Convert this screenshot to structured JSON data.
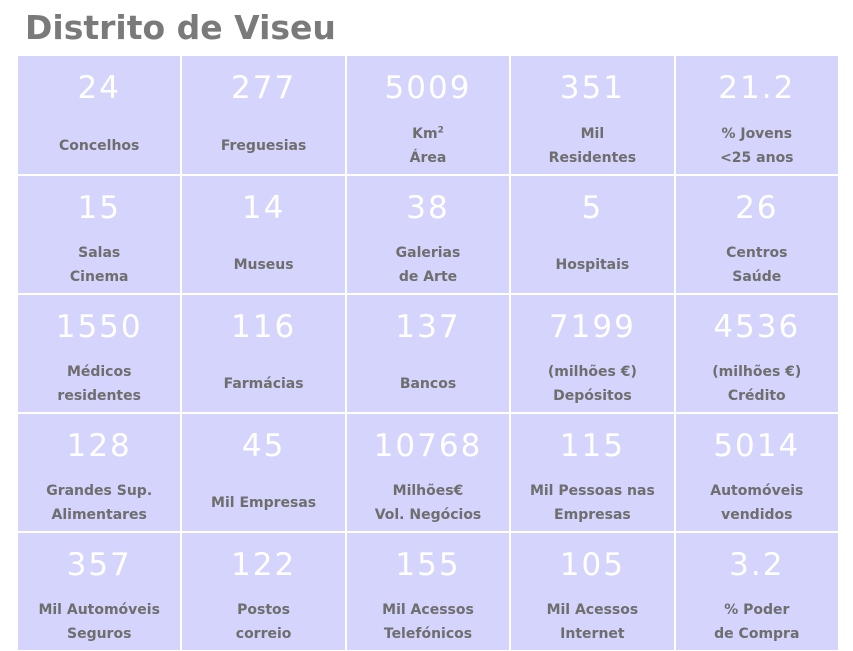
{
  "title": "Distrito de Viseu",
  "cells": [
    {
      "value": "24",
      "line1": "Concelhos",
      "line2": ""
    },
    {
      "value": "277",
      "line1": "Freguesias",
      "line2": ""
    },
    {
      "value": "5009",
      "line1": "Km",
      "sup": "2",
      "line2": "Área"
    },
    {
      "value": "351",
      "line1": "Mil",
      "line2": "Residentes"
    },
    {
      "value": "21.2",
      "line1": "% Jovens",
      "line2": "<25 anos"
    },
    {
      "value": "15",
      "line1": "Salas",
      "line2": "Cinema"
    },
    {
      "value": "14",
      "line1": "Museus",
      "line2": ""
    },
    {
      "value": "38",
      "line1": "Galerias",
      "line2": "de Arte"
    },
    {
      "value": "5",
      "line1": "Hospitais",
      "line2": ""
    },
    {
      "value": "26",
      "line1": "Centros",
      "line2": "Saúde"
    },
    {
      "value": "1550",
      "line1": "Médicos",
      "line2": "residentes"
    },
    {
      "value": "116",
      "line1": "Farmácias",
      "line2": ""
    },
    {
      "value": "137",
      "line1": "Bancos",
      "line2": ""
    },
    {
      "value": "7199",
      "line1": "(milhões €)",
      "line2": "Depósitos"
    },
    {
      "value": "4536",
      "line1": "(milhões €)",
      "line2": "Crédito"
    },
    {
      "value": "128",
      "line1": "Grandes Sup.",
      "line2": "Alimentares"
    },
    {
      "value": "45",
      "line1": "Mil Empresas",
      "line2": ""
    },
    {
      "value": "10768",
      "line1": "Milhões€",
      "line2": "Vol. Negócios"
    },
    {
      "value": "115",
      "line1": "Mil Pessoas nas",
      "line2": "Empresas"
    },
    {
      "value": "5014",
      "line1": "Automóveis",
      "line2": "vendidos"
    },
    {
      "value": "357",
      "line1": "Mil Automóveis",
      "line2": "Seguros"
    },
    {
      "value": "122",
      "line1": "Postos",
      "line2": "correio"
    },
    {
      "value": "155",
      "line1": "Mil Acessos",
      "line2": "Telefónicos"
    },
    {
      "value": "105",
      "line1": "Mil Acessos",
      "line2": "Internet"
    },
    {
      "value": "3.2",
      "line1": "% Poder",
      "line2": "de Compra"
    }
  ],
  "colors": {
    "cell_bg": "#d4d4fc",
    "value": "#ffffff",
    "label": "#6e6e6e",
    "title": "#7a7a7a"
  }
}
